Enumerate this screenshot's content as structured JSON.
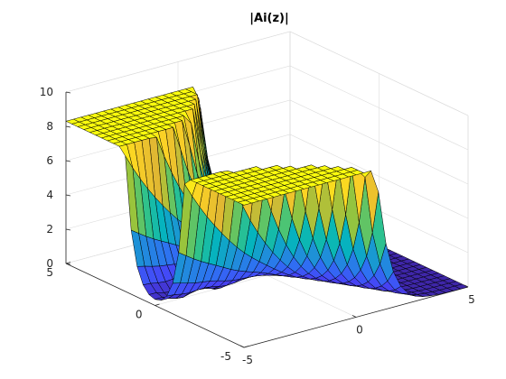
{
  "chart_data": {
    "type": "surface",
    "title": "|Ai(z)|",
    "xlabel": "",
    "ylabel": "",
    "zlabel": "",
    "x_axis": {
      "ticks": [
        -5,
        0,
        5
      ],
      "tick_labels": [
        "-5",
        "0",
        "5"
      ],
      "range": [
        -5,
        5
      ]
    },
    "y_axis": {
      "ticks": [
        -5,
        0,
        5
      ],
      "tick_labels": [
        "-5",
        "0",
        "5"
      ],
      "range": [
        -5,
        5
      ]
    },
    "z_axis": {
      "ticks": [
        0,
        2,
        4,
        6,
        8,
        10
      ],
      "tick_labels": [
        "0",
        "2",
        "4",
        "6",
        "8",
        "10"
      ],
      "range": [
        0,
        10
      ]
    },
    "grid": true,
    "colormap": [
      "#3e26a8",
      "#4743f7",
      "#2f6ff3",
      "#1b96d3",
      "#04b5bc",
      "#36c484",
      "#99c43c",
      "#e0b733",
      "#fbd026",
      "#f9fb0e"
    ],
    "edge_color": "#000000",
    "function": "abs(airy(x + i*y)) clipped at 8.3 (mesh over [-5,5] x [-5,5])"
  }
}
